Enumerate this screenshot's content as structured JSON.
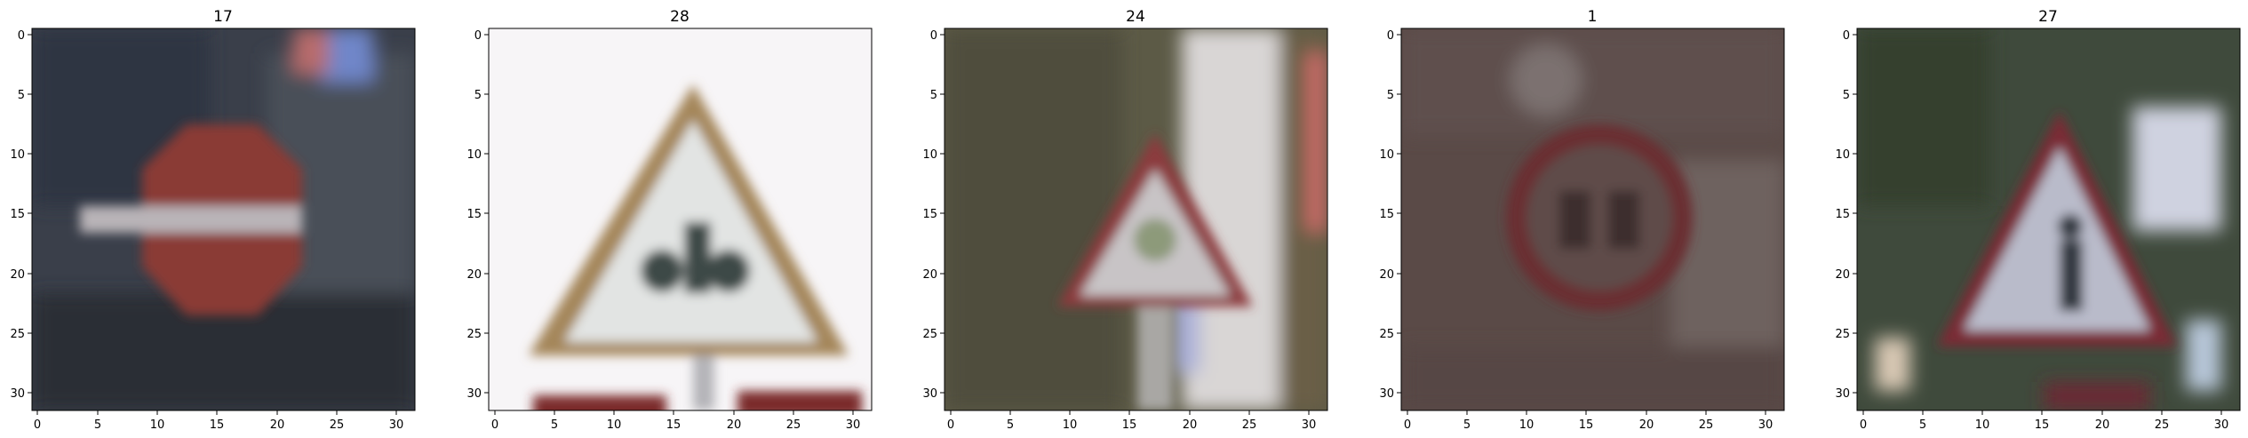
{
  "figure": {
    "panels": [
      {
        "title": "17",
        "image_description_icon": "no-entry-sign-icon",
        "x_ticks": [
          "0",
          "5",
          "10",
          "15",
          "20",
          "25",
          "30"
        ],
        "y_ticks": [
          "0",
          "5",
          "10",
          "15",
          "20",
          "25",
          "30"
        ],
        "colors": {
          "background": "#3a3f4a",
          "sign_fill": "#8a3a36",
          "sign_bar": "#b9b4b8",
          "accent": "#6f86c9"
        }
      },
      {
        "title": "28",
        "image_description_icon": "children-crossing-warning-sign-icon",
        "x_ticks": [
          "0",
          "5",
          "10",
          "15",
          "20",
          "25",
          "30"
        ],
        "y_ticks": [
          "0",
          "5",
          "10",
          "15",
          "20",
          "25",
          "30"
        ],
        "colors": {
          "background": "#f7f5f7",
          "sign_border": "#a4865a",
          "sign_fill": "#e2e4e3",
          "symbol": "#3e4a47",
          "bottom_sign": "#7a2a2b"
        }
      },
      {
        "title": "24",
        "image_description_icon": "road-narrows-warning-sign-icon",
        "x_ticks": [
          "0",
          "5",
          "10",
          "15",
          "20",
          "25",
          "30"
        ],
        "y_ticks": [
          "0",
          "5",
          "10",
          "15",
          "20",
          "25",
          "30"
        ],
        "colors": {
          "background": "#5c5a46",
          "sign_border": "#8c3a3d",
          "sign_fill": "#c8c4c6",
          "pole": "#d9d6d5",
          "edge": "#c86a66"
        }
      },
      {
        "title": "1",
        "image_description_icon": "speed-limit-30-sign-icon",
        "x_ticks": [
          "0",
          "5",
          "10",
          "15",
          "20",
          "25",
          "30"
        ],
        "y_ticks": [
          "0",
          "5",
          "10",
          "15",
          "20",
          "25",
          "30"
        ],
        "colors": {
          "background": "#5a4a47",
          "sign_ring": "#6a2e31",
          "sign_fill": "#5e4c4a",
          "symbol": "#3d2d2f",
          "highlight": "#7b716f"
        }
      },
      {
        "title": "27",
        "image_description_icon": "pedestrians-warning-sign-icon",
        "x_ticks": [
          "0",
          "5",
          "10",
          "15",
          "20",
          "25",
          "30"
        ],
        "y_ticks": [
          "0",
          "5",
          "10",
          "15",
          "20",
          "25",
          "30"
        ],
        "colors": {
          "background": "#3f4a3c",
          "sign_border": "#7a2a34",
          "sign_fill": "#b9bbca",
          "symbol": "#333840",
          "highlight": "#cfd2e0"
        }
      }
    ]
  }
}
